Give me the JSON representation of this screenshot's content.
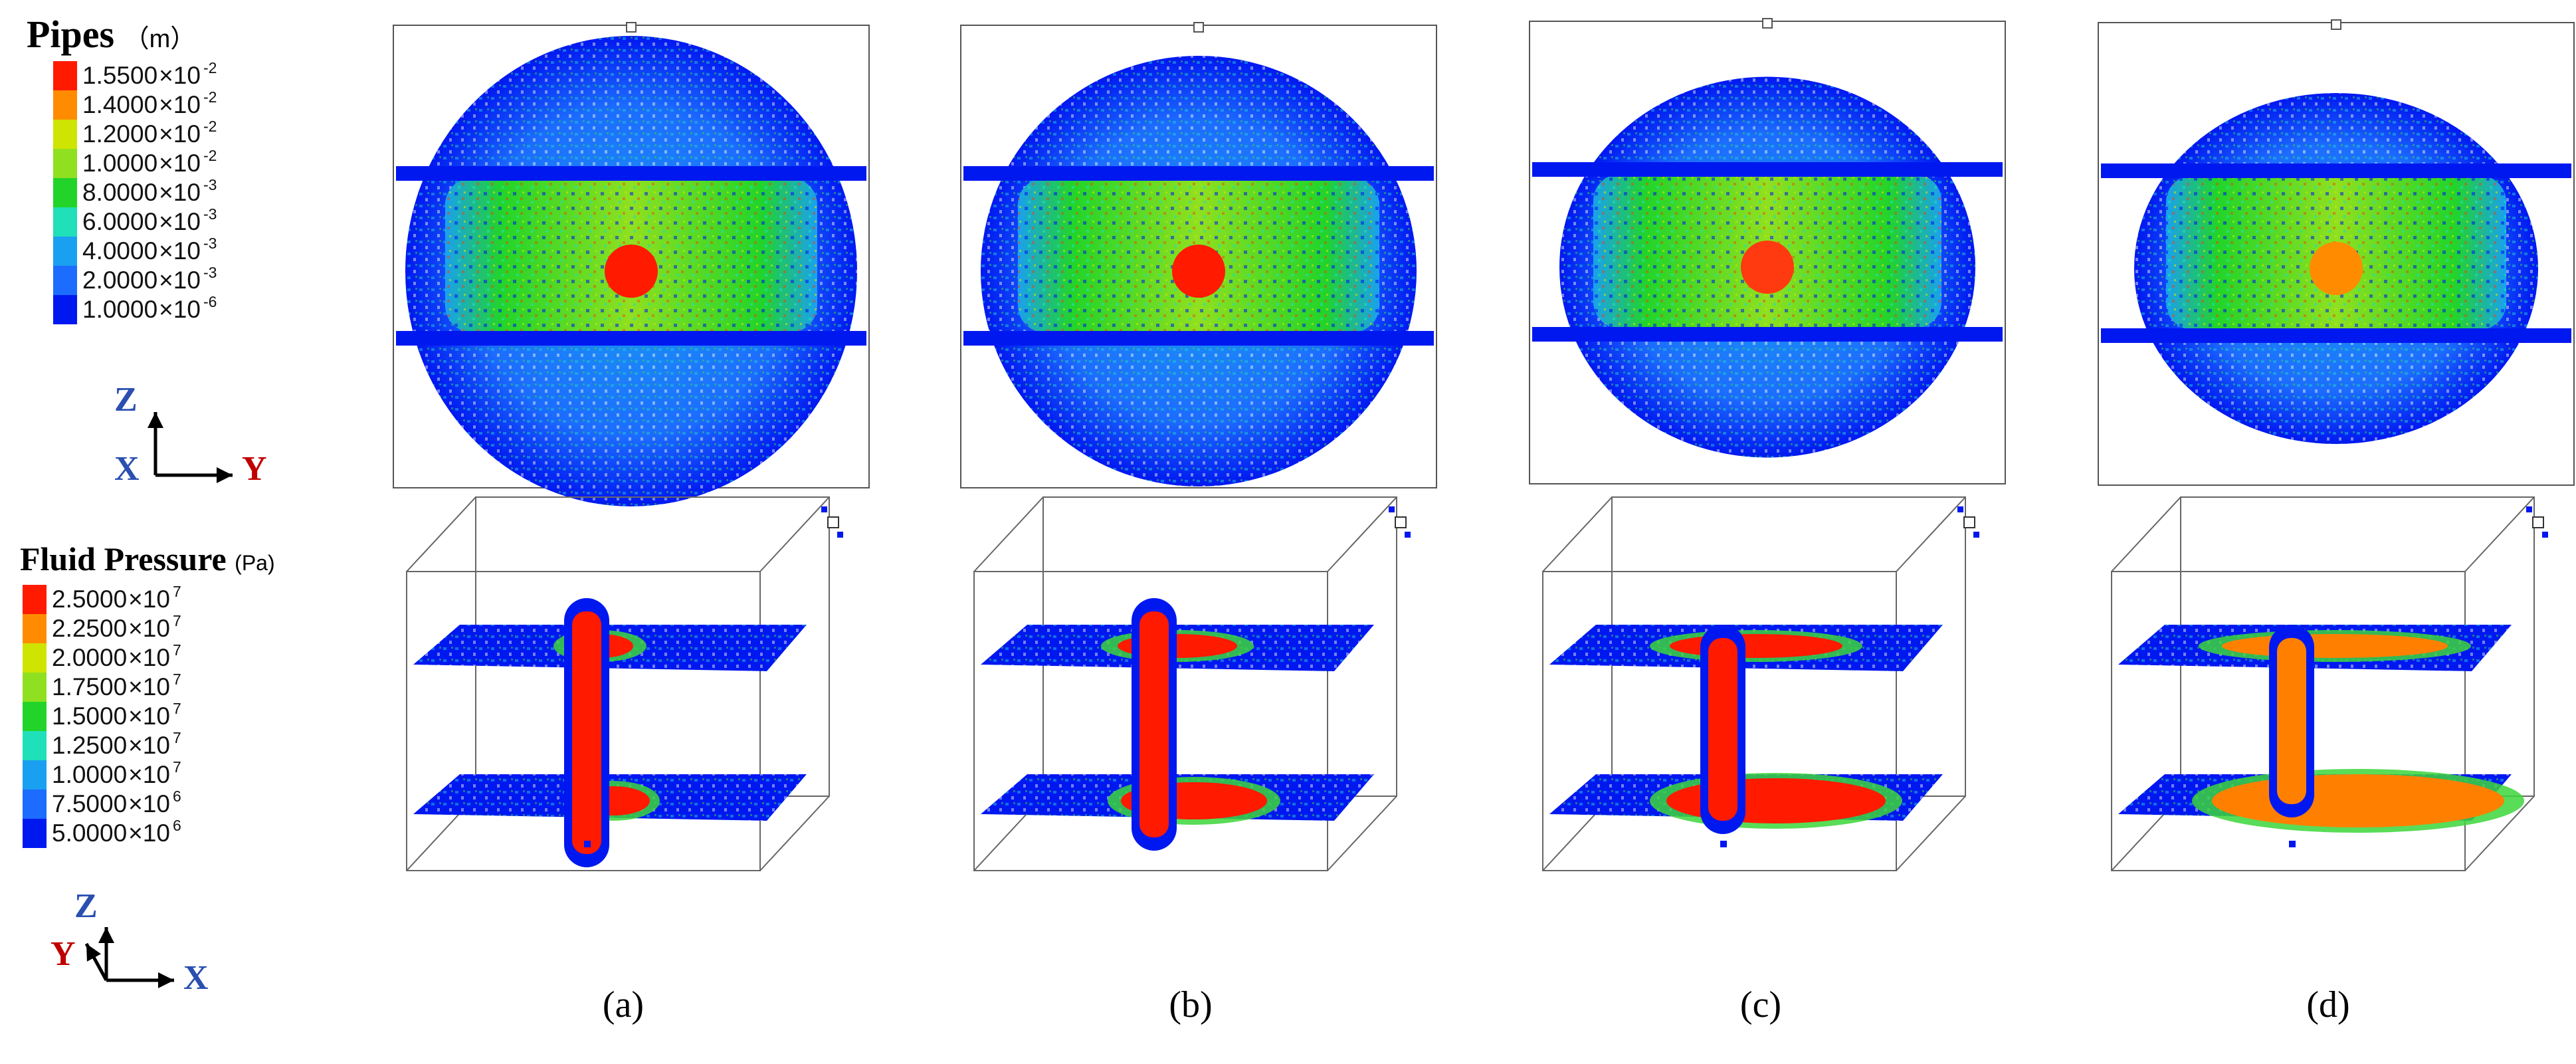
{
  "pipes_legend": {
    "title": "Pipes",
    "unit": "（m）",
    "entries": [
      {
        "mantissa": "1.5500",
        "exponent": "-2",
        "color": "#ff1a00"
      },
      {
        "mantissa": "1.4000",
        "exponent": "-2",
        "color": "#ff8c00"
      },
      {
        "mantissa": "1.2000",
        "exponent": "-2",
        "color": "#cfe400"
      },
      {
        "mantissa": "1.0000",
        "exponent": "-2",
        "color": "#8fe020"
      },
      {
        "mantissa": "8.0000",
        "exponent": "-3",
        "color": "#22d42a"
      },
      {
        "mantissa": "6.0000",
        "exponent": "-3",
        "color": "#1fe0b8"
      },
      {
        "mantissa": "4.0000",
        "exponent": "-3",
        "color": "#1aa0f0"
      },
      {
        "mantissa": "2.0000",
        "exponent": "-3",
        "color": "#1c6cff"
      },
      {
        "mantissa": "1.0000",
        "exponent": "-6",
        "color": "#0018f0"
      }
    ],
    "axes": {
      "up": "Z",
      "left": "X",
      "right": "Y"
    }
  },
  "pressure_legend": {
    "title": "Fluid Pressure",
    "unit": "(Pa)",
    "entries": [
      {
        "mantissa": "2.5000",
        "exponent": "7",
        "color": "#ff1a00"
      },
      {
        "mantissa": "2.2500",
        "exponent": "7",
        "color": "#ff8c00"
      },
      {
        "mantissa": "2.0000",
        "exponent": "7",
        "color": "#cfe400"
      },
      {
        "mantissa": "1.7500",
        "exponent": "7",
        "color": "#8fe020"
      },
      {
        "mantissa": "1.5000",
        "exponent": "7",
        "color": "#22d42a"
      },
      {
        "mantissa": "1.2500",
        "exponent": "7",
        "color": "#1fe0b8"
      },
      {
        "mantissa": "1.0000",
        "exponent": "7",
        "color": "#1aa0f0"
      },
      {
        "mantissa": "7.5000",
        "exponent": "6",
        "color": "#1c6cff"
      },
      {
        "mantissa": "5.0000",
        "exponent": "6",
        "color": "#0018f0"
      }
    ],
    "axes": {
      "up": "Z",
      "left": "Y",
      "right": "X"
    }
  },
  "panels": [
    {
      "label": "(a)",
      "center_color": "#ff1a00",
      "pressure_color": "#ff1a00"
    },
    {
      "label": "(b)",
      "center_color": "#ff1a00",
      "pressure_color": "#ff1a00"
    },
    {
      "label": "(c)",
      "center_color": "#ff3a10",
      "pressure_color": "#ff1a00"
    },
    {
      "label": "(d)",
      "center_color": "#ff8c00",
      "pressure_color": "#ff8000"
    }
  ],
  "colors": {
    "fracture_blue": "#0018f0",
    "mid_cyan": "#1fc8e0",
    "mid_green": "#3cd63a",
    "axis_blue": "#2a4fb0",
    "axis_red": "#c00000"
  }
}
